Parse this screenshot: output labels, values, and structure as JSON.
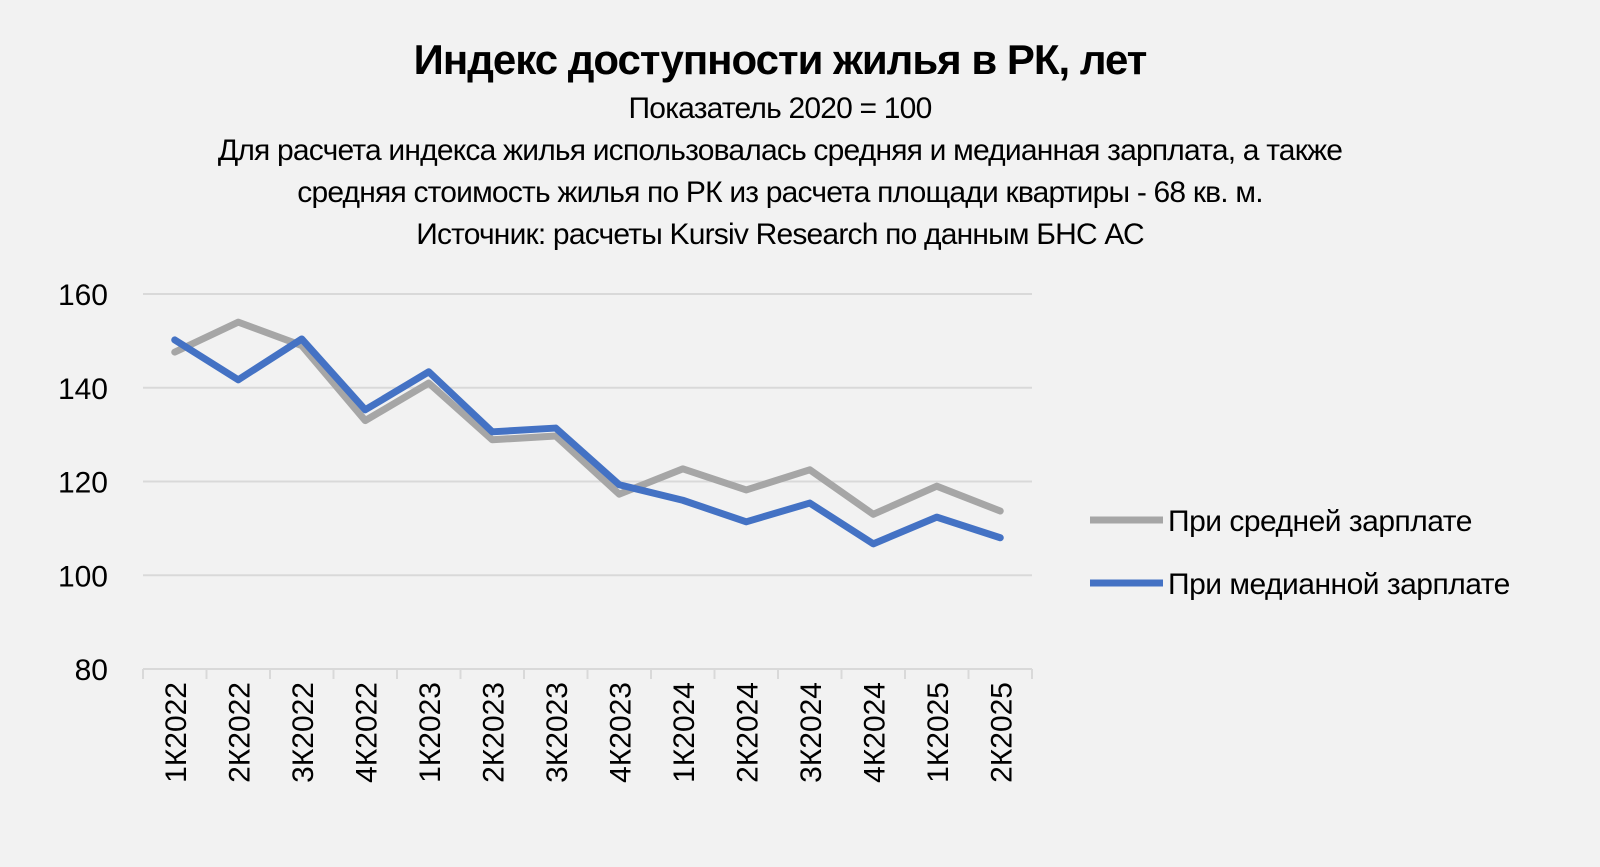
{
  "chart_data": {
    "type": "line",
    "title": "Индекс доступности жилья в РК, лет",
    "subtitles": [
      "Показатель 2020 = 100",
      "Для расчета индекса жилья использовалась средняя и медианная зарплата, а также",
      "средняя стоимость жилья по РК из расчета площади квартиры - 68 кв. м.",
      "Источник: расчеты Kursiv Research по данным БНС АС"
    ],
    "categories": [
      "1К2022",
      "2К2022",
      "3К2022",
      "4К2022",
      "1К2023",
      "2К2023",
      "3К2023",
      "4К2023",
      "1К2024",
      "2К2024",
      "3К2024",
      "4К2024",
      "1К2025",
      "2К2025"
    ],
    "series": [
      {
        "name": "При средней зарплате",
        "color": "#a6a6a6",
        "values": [
          147.6,
          154.0,
          149.0,
          133.0,
          141.0,
          128.9,
          129.7,
          117.3,
          122.7,
          118.2,
          122.5,
          113.0,
          119.0,
          113.7
        ]
      },
      {
        "name": "При медианной зарплате",
        "color": "#4472c4",
        "values": [
          150.2,
          141.7,
          150.4,
          135.3,
          143.4,
          130.6,
          131.4,
          119.3,
          116.0,
          111.4,
          115.4,
          106.7,
          112.4,
          108.0
        ]
      }
    ],
    "ylim": [
      80,
      160
    ],
    "yticks": [
      "80",
      "100",
      "120",
      "140",
      "160"
    ],
    "xlabel": "",
    "ylabel": "",
    "grid": true,
    "legend": "right"
  }
}
